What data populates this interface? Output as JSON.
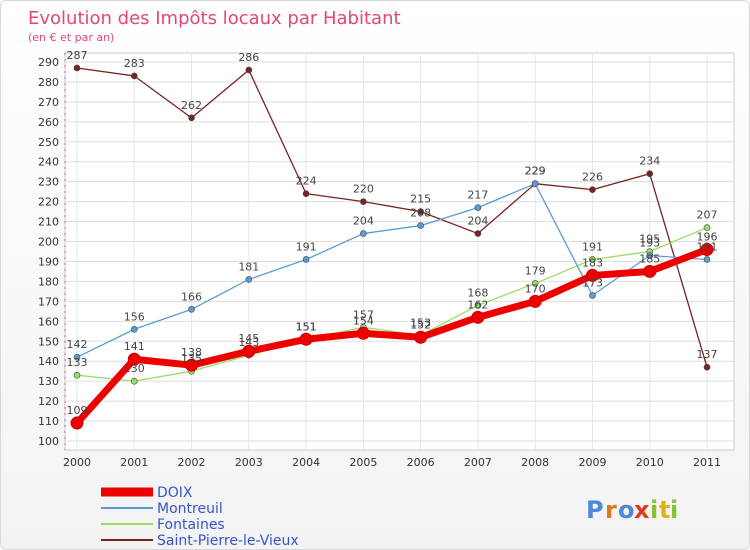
{
  "chart_data": {
    "type": "line",
    "title": "Evolution des Impôts locaux par Habitant",
    "subtitle": "(en € et par an)",
    "x": [
      "2000",
      "2001",
      "2002",
      "2003",
      "2004",
      "2005",
      "2006",
      "2007",
      "2008",
      "2009",
      "2010",
      "2011"
    ],
    "ylim": [
      100,
      290
    ],
    "yticks": [
      100,
      110,
      120,
      130,
      140,
      150,
      160,
      170,
      180,
      190,
      200,
      210,
      220,
      230,
      240,
      250,
      260,
      270,
      280,
      290
    ],
    "grid": true,
    "legend": "bottom-left",
    "series": [
      {
        "name": "DOIX",
        "color": "#ee0000",
        "values": [
          109,
          141,
          138,
          145,
          151,
          154,
          152,
          162,
          170,
          183,
          185,
          196
        ]
      },
      {
        "name": "Montreuil",
        "color": "#5b9bd5",
        "values": [
          142,
          156,
          166,
          181,
          191,
          204,
          208,
          217,
          229,
          173,
          193,
          191
        ]
      },
      {
        "name": "Fontaines",
        "color": "#99dd66",
        "values": [
          133,
          130,
          135,
          143,
          151,
          157,
          153,
          168,
          179,
          191,
          195,
          207
        ]
      },
      {
        "name": "Saint-Pierre-le-Vieux",
        "color": "#7a2222",
        "values": [
          287,
          283,
          262,
          286,
          224,
          220,
          215,
          204,
          229,
          226,
          234,
          137
        ]
      }
    ]
  },
  "legend_text_color": "#3355cc",
  "logo": {
    "letters": [
      "P",
      "r",
      "o",
      "x",
      "i",
      "t",
      "i"
    ],
    "colors": [
      "#4a8ad8",
      "#e07a1e",
      "#4a8ad8",
      "#e03a1e",
      "#88c232",
      "#e0b01e",
      "#88c232"
    ]
  }
}
